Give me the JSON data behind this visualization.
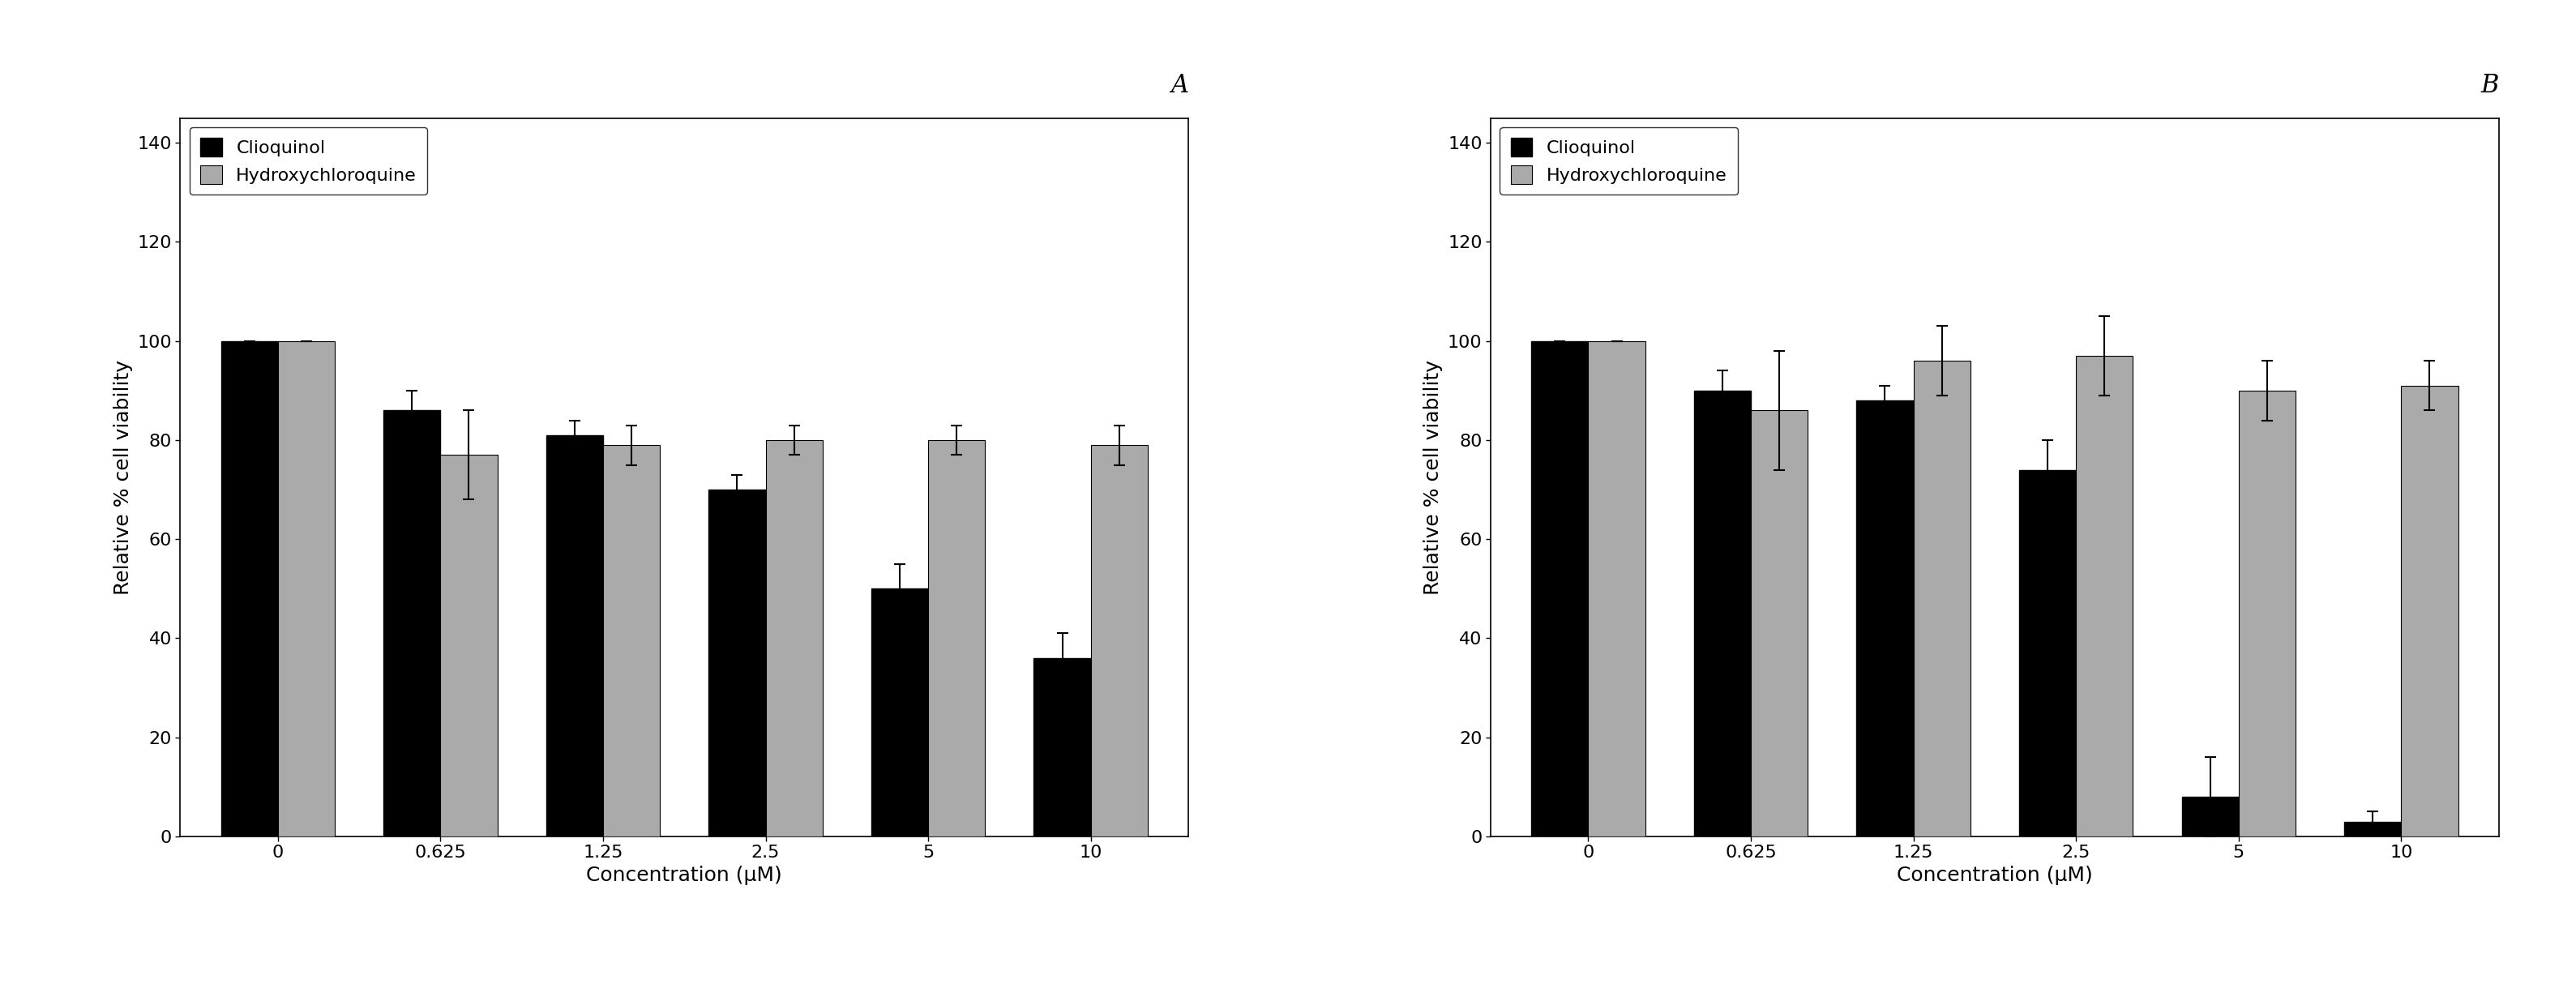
{
  "panel_A": {
    "label": "A",
    "categories": [
      "0",
      "0.625",
      "1.25",
      "2.5",
      "5",
      "10"
    ],
    "clioquinol_values": [
      100,
      86,
      81,
      70,
      50,
      36
    ],
    "clioquinol_errors": [
      0,
      4,
      3,
      3,
      5,
      5
    ],
    "hcq_values": [
      100,
      77,
      79,
      80,
      80,
      79
    ],
    "hcq_errors": [
      0,
      9,
      4,
      3,
      3,
      4
    ]
  },
  "panel_B": {
    "label": "B",
    "categories": [
      "0",
      "0.625",
      "1.25",
      "2.5",
      "5",
      "10"
    ],
    "clioquinol_values": [
      100,
      90,
      88,
      74,
      8,
      3
    ],
    "clioquinol_errors": [
      0,
      4,
      3,
      6,
      8,
      2
    ],
    "hcq_values": [
      100,
      86,
      96,
      97,
      90,
      91
    ],
    "hcq_errors": [
      0,
      12,
      7,
      8,
      6,
      5
    ]
  },
  "bar_width": 0.35,
  "clioq_color": "#000000",
  "hcq_color": "#aaaaaa",
  "ylabel": "Relative % cell viability",
  "xlabel": "Concentration (μM)",
  "ylim": [
    0,
    145
  ],
  "yticks": [
    0,
    20,
    40,
    60,
    80,
    100,
    120,
    140
  ],
  "legend_labels": [
    "Clioquinol",
    "Hydroxychloroquine"
  ],
  "panel_label_fontsize": 22,
  "label_fontsize": 18,
  "tick_fontsize": 16,
  "legend_fontsize": 16,
  "elinewidth": 1.5,
  "ecapsize": 5,
  "figure_facecolor": "#ffffff"
}
